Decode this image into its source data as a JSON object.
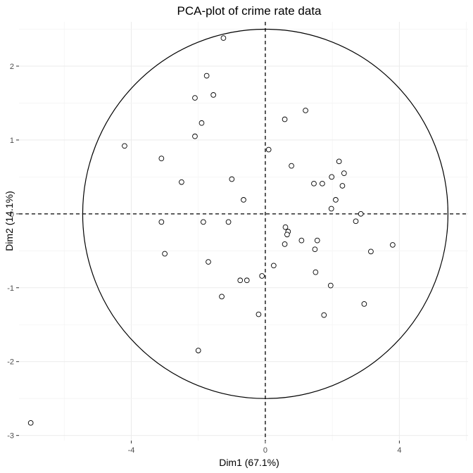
{
  "chart_data": {
    "type": "scatter",
    "title": "PCA-plot of crime rate data",
    "xlabel": "Dim1 (67.1%)",
    "ylabel": "Dim2 (14.1%)",
    "xlim": [
      -7.35,
      6.05
    ],
    "ylim": [
      -3.07,
      2.6
    ],
    "xticks": [
      -4,
      0,
      4
    ],
    "yticks": [
      -3,
      -2,
      -1,
      0,
      1,
      2
    ],
    "grid": true,
    "circle_radius": 5.45,
    "reference_lines": {
      "x": 0,
      "y": 0
    },
    "points": [
      {
        "x": -1.25,
        "y": 2.38
      },
      {
        "x": -1.75,
        "y": 1.87
      },
      {
        "x": -2.1,
        "y": 1.57
      },
      {
        "x": -1.55,
        "y": 1.61
      },
      {
        "x": -1.9,
        "y": 1.23
      },
      {
        "x": -2.1,
        "y": 1.05
      },
      {
        "x": -4.2,
        "y": 0.92
      },
      {
        "x": -3.1,
        "y": 0.75
      },
      {
        "x": -2.5,
        "y": 0.43
      },
      {
        "x": -1.0,
        "y": 0.47
      },
      {
        "x": -0.65,
        "y": 0.19
      },
      {
        "x": 0.1,
        "y": 0.87
      },
      {
        "x": 0.58,
        "y": 1.28
      },
      {
        "x": 1.2,
        "y": 1.4
      },
      {
        "x": 0.78,
        "y": 0.65
      },
      {
        "x": 2.2,
        "y": 0.71
      },
      {
        "x": 2.35,
        "y": 0.55
      },
      {
        "x": 1.98,
        "y": 0.5
      },
      {
        "x": 1.45,
        "y": 0.41
      },
      {
        "x": 1.7,
        "y": 0.41
      },
      {
        "x": 2.3,
        "y": 0.38
      },
      {
        "x": 2.1,
        "y": 0.19
      },
      {
        "x": 1.97,
        "y": 0.07
      },
      {
        "x": 2.85,
        "y": 0.0
      },
      {
        "x": 2.7,
        "y": -0.1
      },
      {
        "x": -3.1,
        "y": -0.11
      },
      {
        "x": -1.85,
        "y": -0.11
      },
      {
        "x": -1.1,
        "y": -0.11
      },
      {
        "x": 0.6,
        "y": -0.18
      },
      {
        "x": 0.68,
        "y": -0.24
      },
      {
        "x": 0.65,
        "y": -0.28
      },
      {
        "x": 1.08,
        "y": -0.36
      },
      {
        "x": 1.55,
        "y": -0.36
      },
      {
        "x": 0.58,
        "y": -0.41
      },
      {
        "x": 1.48,
        "y": -0.48
      },
      {
        "x": 3.15,
        "y": -0.51
      },
      {
        "x": 3.8,
        "y": -0.42
      },
      {
        "x": -3.0,
        "y": -0.54
      },
      {
        "x": -1.7,
        "y": -0.65
      },
      {
        "x": 0.25,
        "y": -0.7
      },
      {
        "x": -0.1,
        "y": -0.84
      },
      {
        "x": -0.75,
        "y": -0.9
      },
      {
        "x": -0.55,
        "y": -0.9
      },
      {
        "x": 1.5,
        "y": -0.79
      },
      {
        "x": 1.95,
        "y": -0.97
      },
      {
        "x": -1.3,
        "y": -1.12
      },
      {
        "x": 2.95,
        "y": -1.22
      },
      {
        "x": -0.2,
        "y": -1.36
      },
      {
        "x": 1.75,
        "y": -1.37
      },
      {
        "x": -2.0,
        "y": -1.85
      },
      {
        "x": -7.0,
        "y": -2.83
      }
    ]
  }
}
